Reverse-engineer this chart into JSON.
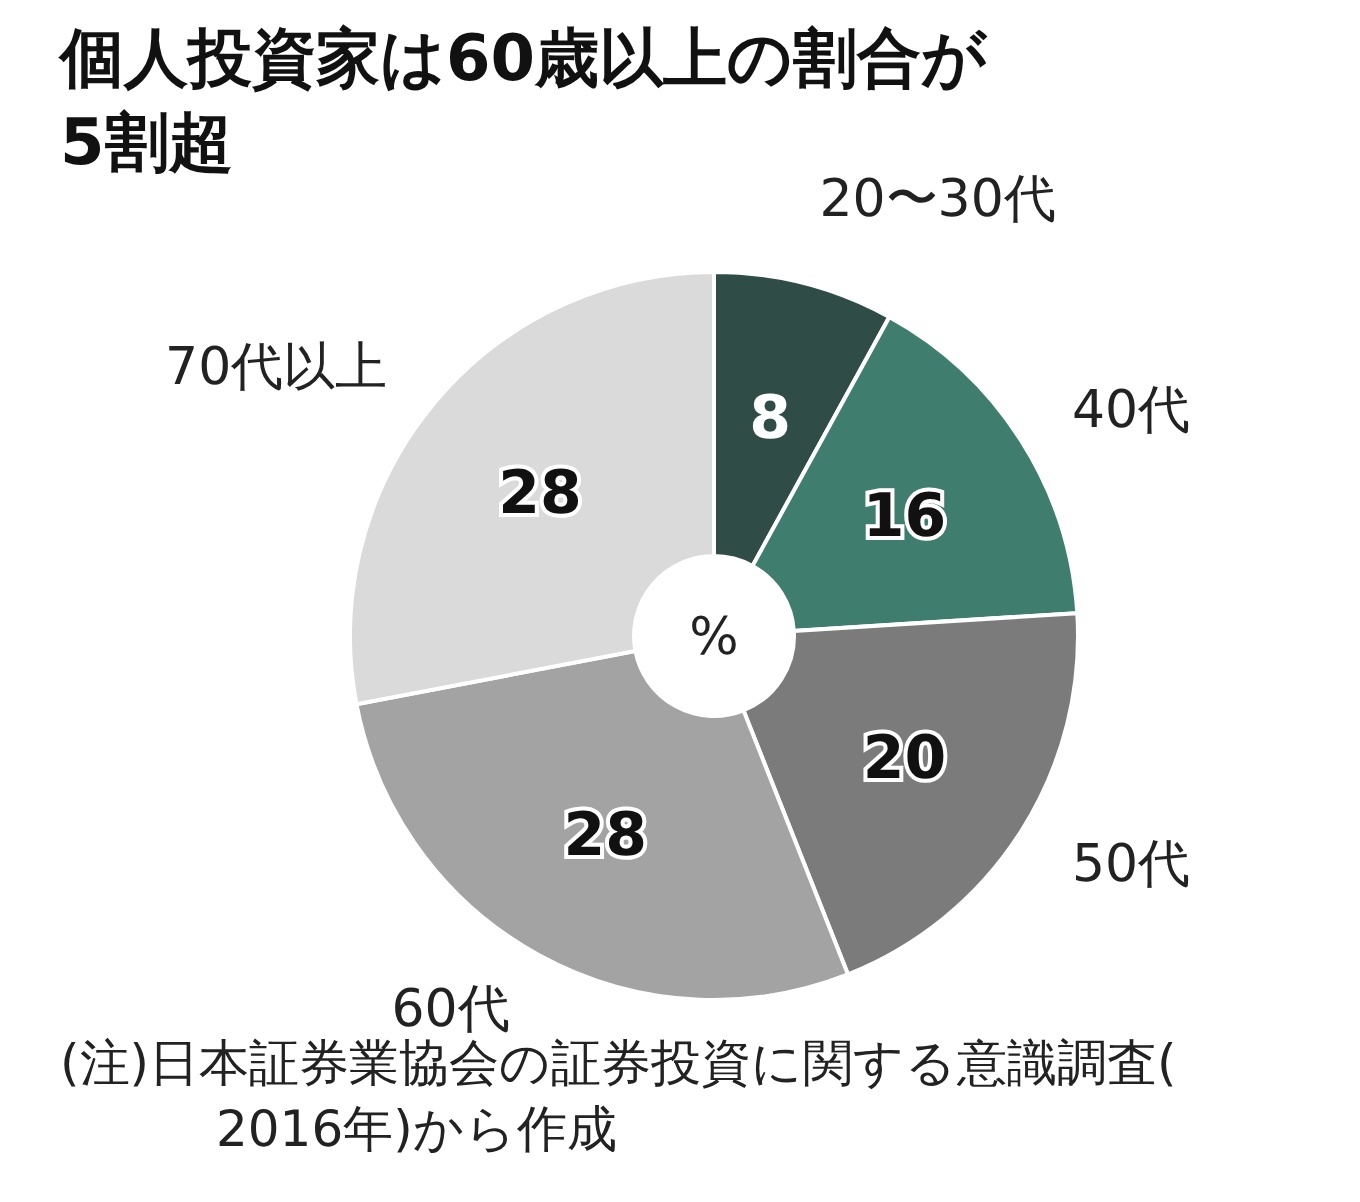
{
  "chart_data": {
    "type": "donut",
    "title": "個人投資家は60歳以上の割合が5割超",
    "categories": [
      "20〜30代",
      "40代",
      "50代",
      "60代",
      "70代以上"
    ],
    "values": [
      8,
      16,
      20,
      28,
      28
    ],
    "colors": [
      "#2f4c47",
      "#3f7d6f",
      "#7b7b7b",
      "#a3a3a3",
      "#dadada"
    ],
    "data_labels": true,
    "annotations": [
      "%",
      "(注)日本証券業協会の証券投資に関する意識調査(2016年)から作成"
    ]
  }
}
